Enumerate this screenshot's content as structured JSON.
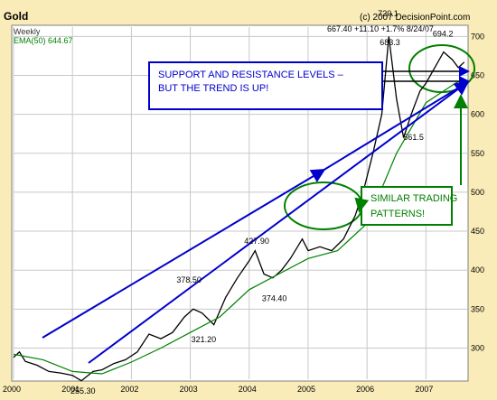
{
  "header": {
    "title": "Gold",
    "copyright": "(c) 2007 DecisionPoint.com",
    "period": "Weekly",
    "ema_label": "EMA(50) 644.67",
    "quote": "667.40 +11.10 +1.7% 8/24/07"
  },
  "chart_data": {
    "type": "line",
    "title": "Gold",
    "x_ticks": [
      "2000",
      "2001",
      "2002",
      "2003",
      "2004",
      "2005",
      "2006",
      "2007"
    ],
    "y_ticks": [
      300,
      350,
      400,
      450,
      500,
      550,
      600,
      650,
      700
    ],
    "ylim": [
      260,
      712
    ],
    "grid": true,
    "series": [
      {
        "name": "",
        "x": [
          2000.0,
          2000.1,
          2000.2,
          2000.4,
          2000.6,
          2000.8,
          2001.0,
          2001.15,
          2001.35,
          2001.5,
          2001.7,
          2001.9,
          2002.1,
          2002.3,
          2002.5,
          2002.7,
          2002.9,
          2003.05,
          2003.2,
          2003.4,
          2003.6,
          2003.8,
          2004.0,
          2004.1,
          2004.25,
          2004.4,
          2004.55,
          2004.7,
          2004.9,
          2005.0,
          2005.2,
          2005.4,
          2005.6,
          2005.8,
          2005.95,
          2006.1,
          2006.25,
          2006.37,
          2006.5,
          2006.62,
          2006.75,
          2006.9,
          2007.0,
          2007.15,
          2007.3,
          2007.45,
          2007.55,
          2007.65
        ],
        "values": [
          288,
          295,
          283,
          278,
          270,
          268,
          265,
          258,
          270,
          272,
          280,
          285,
          295,
          318,
          312,
          320,
          340,
          350,
          345,
          330,
          365,
          390,
          412,
          425,
          395,
          390,
          400,
          415,
          440,
          425,
          430,
          425,
          440,
          470,
          505,
          550,
          600,
          700,
          620,
          570,
          600,
          630,
          640,
          660,
          680,
          670,
          660,
          667
        ]
      },
      {
        "name": "EMA(50)",
        "x": [
          2000.0,
          2000.5,
          2001.0,
          2001.5,
          2002.0,
          2002.5,
          2003.0,
          2003.5,
          2004.0,
          2004.5,
          2005.0,
          2005.5,
          2006.0,
          2006.5,
          2007.0,
          2007.5,
          2007.65
        ],
        "values": [
          292,
          285,
          270,
          267,
          282,
          300,
          320,
          340,
          375,
          395,
          415,
          425,
          460,
          550,
          615,
          640,
          645
        ]
      }
    ],
    "price_labels": [
      {
        "x": 2001.15,
        "y": 255.3,
        "text": "255.30"
      },
      {
        "x": 2002.95,
        "y": 378.5,
        "text": "378.50"
      },
      {
        "x": 2003.2,
        "y": 321.2,
        "text": "321.20"
      },
      {
        "x": 2004.1,
        "y": 427.9,
        "text": "427.90"
      },
      {
        "x": 2004.4,
        "y": 374.4,
        "text": "374.40"
      },
      {
        "x": 2006.37,
        "y": 720.1,
        "text": "720.1"
      },
      {
        "x": 2006.4,
        "y": 683.3,
        "text": "683.3"
      },
      {
        "x": 2006.8,
        "y": 561.5,
        "text": "561.5"
      },
      {
        "x": 2007.3,
        "y": 694.2,
        "text": "694.2"
      }
    ],
    "annotations": [
      {
        "id": "note-trend",
        "text": "SUPPORT AND RESISTANCE LEVELS –\nBUT THE TREND IS UP!",
        "color": "#0000cc"
      },
      {
        "id": "note-similar",
        "text": "SIMILAR TRADING\nPATTERNS!",
        "color": "#008000"
      }
    ]
  },
  "colors": {
    "frame": "#f9ecb8",
    "price": "#000000",
    "ema": "#008000",
    "grid": "#c8c8c8",
    "trend_lines": "#0000cc",
    "highlight": "#008000",
    "resistance": "#000000"
  }
}
